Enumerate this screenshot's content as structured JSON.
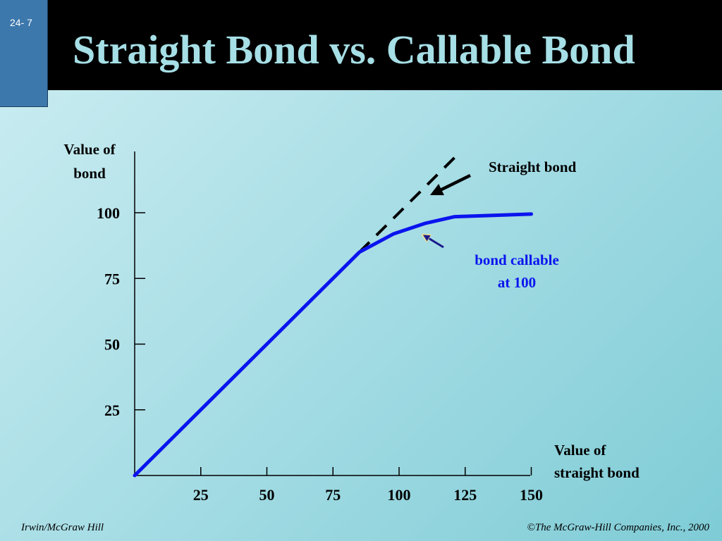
{
  "slide": {
    "number": "24- 7",
    "title": "Straight Bond vs. Callable Bond",
    "footer_left": "Irwin/McGraw Hill",
    "footer_right": "©The McGraw-Hill Companies, Inc., 2000"
  },
  "chart_data": {
    "type": "line",
    "title": "Straight Bond vs. Callable Bond",
    "ylabel_lines": [
      "Value of",
      "bond"
    ],
    "xlabel_lines": [
      "Value of",
      "straight bond"
    ],
    "xlim": [
      0,
      150
    ],
    "ylim": [
      0,
      100
    ],
    "xticks": [
      25,
      50,
      75,
      100,
      125,
      150
    ],
    "yticks": [
      25,
      50,
      75,
      100
    ],
    "grid": false,
    "series": [
      {
        "name": "Straight bond",
        "style": "dashed",
        "color": "#000000",
        "x": [
          85,
          123
        ],
        "y": [
          85,
          123
        ]
      },
      {
        "name": "bond callable at 100",
        "style": "solid",
        "color": "#0a14ee",
        "x": [
          0,
          50,
          85,
          98,
          110,
          121,
          150
        ],
        "y": [
          0,
          50,
          85,
          92,
          96,
          98.5,
          99.5
        ]
      }
    ],
    "annotations": [
      {
        "lines": [
          "Straight bond"
        ],
        "color": "#000000",
        "points_to": "Straight bond"
      },
      {
        "lines": [
          "bond callable",
          "at 100"
        ],
        "color": "#0a14ee",
        "points_to": "bond callable at 100"
      }
    ]
  }
}
